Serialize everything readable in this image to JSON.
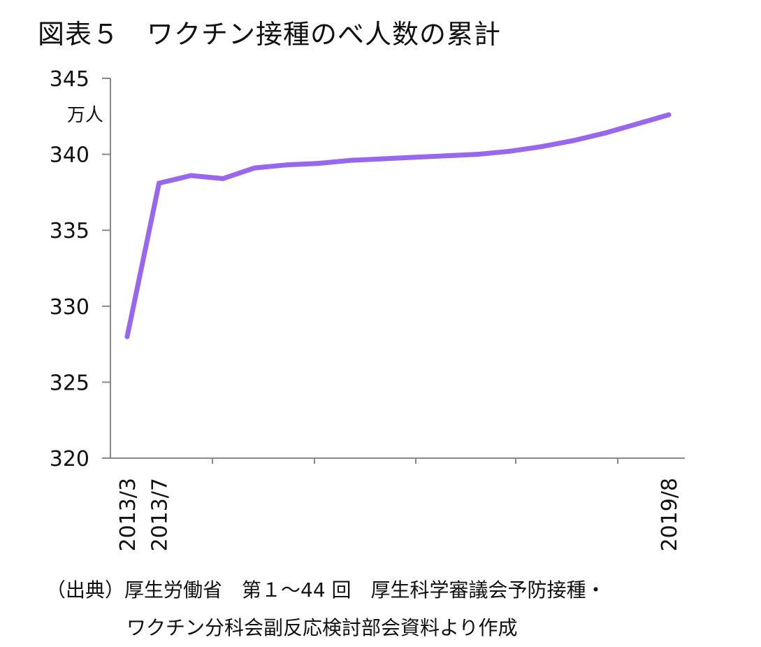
{
  "title": "図表５　ワクチン接種のべ人数の累計",
  "source": {
    "line1": "（出典）厚生労働省　第１～44 回　厚生科学審議会予防接種・",
    "line2": "ワクチン分科会副反応検討部会資料より作成"
  },
  "chart_data": {
    "type": "line",
    "title": "図表５　ワクチン接種のべ人数の累計",
    "ylabel": "万人",
    "ylim": [
      320,
      345
    ],
    "yticks": [
      320,
      325,
      330,
      335,
      340,
      345
    ],
    "x_tick_labels": [
      "2013/3",
      "2013/7",
      "2019/8"
    ],
    "grid": false,
    "color": "#9966ee",
    "series": [
      {
        "values": [
          328.0,
          338.1,
          338.6,
          338.4,
          339.1,
          339.3,
          339.4,
          339.6,
          339.7,
          339.8,
          339.9,
          340.0,
          340.2,
          340.5,
          340.9,
          341.4,
          342.0,
          342.6
        ]
      }
    ]
  }
}
